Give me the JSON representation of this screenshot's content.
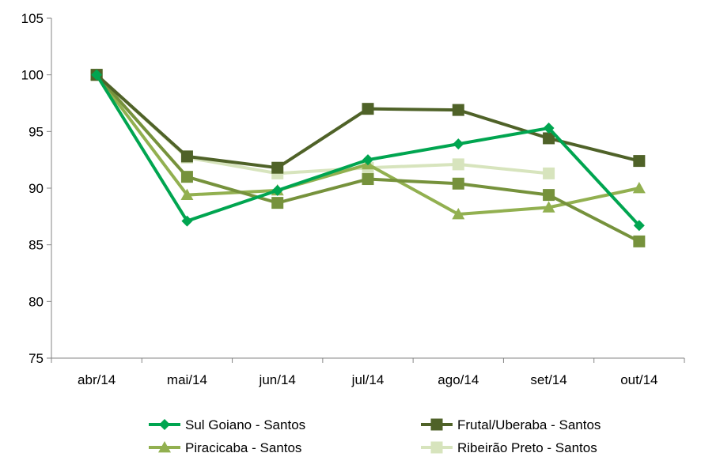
{
  "chart_data": {
    "type": "line",
    "title": "",
    "xlabel": "",
    "ylabel": "",
    "categories": [
      "abr/14",
      "mai/14",
      "jun/14",
      "jul/14",
      "ago/14",
      "set/14",
      "out/14"
    ],
    "ylim": [
      75,
      105
    ],
    "yticks": [
      75,
      80,
      85,
      90,
      95,
      100,
      105
    ],
    "grid": false,
    "legend_position": "bottom",
    "series": [
      {
        "name": "Sul Goiano - Santos",
        "color": "#00a550",
        "marker": "diamond",
        "values": [
          100,
          87.1,
          89.8,
          92.5,
          93.9,
          95.3,
          86.7
        ]
      },
      {
        "name": "Frutal/Uberaba - Santos",
        "color": "#4f6228",
        "marker": "square",
        "values": [
          100,
          92.8,
          91.8,
          97.0,
          96.9,
          94.4,
          92.4
        ]
      },
      {
        "name": "Piracicaba - Santos",
        "color": "#92b050",
        "marker": "triangle",
        "values": [
          100,
          89.4,
          89.8,
          92.1,
          87.7,
          88.3,
          90.0
        ]
      },
      {
        "name": "Ribeirão Preto - Santos",
        "color": "#d7e4bd",
        "marker": "square",
        "values": [
          100,
          92.7,
          91.3,
          91.8,
          92.1,
          91.3,
          null
        ]
      },
      {
        "name": "",
        "color": "#76923c",
        "marker": "square",
        "values": [
          100,
          91.0,
          88.7,
          90.8,
          90.4,
          89.4,
          85.3
        ]
      }
    ],
    "legend_entries": [
      {
        "name": "Sul Goiano - Santos",
        "color": "#00a550",
        "marker": "diamond"
      },
      {
        "name": "Frutal/Uberaba - Santos",
        "color": "#4f6228",
        "marker": "square"
      },
      {
        "name": "Piracicaba - Santos",
        "color": "#92b050",
        "marker": "triangle"
      },
      {
        "name": "Ribeirão Preto - Santos",
        "color": "#d7e4bd",
        "marker": "square"
      }
    ]
  }
}
